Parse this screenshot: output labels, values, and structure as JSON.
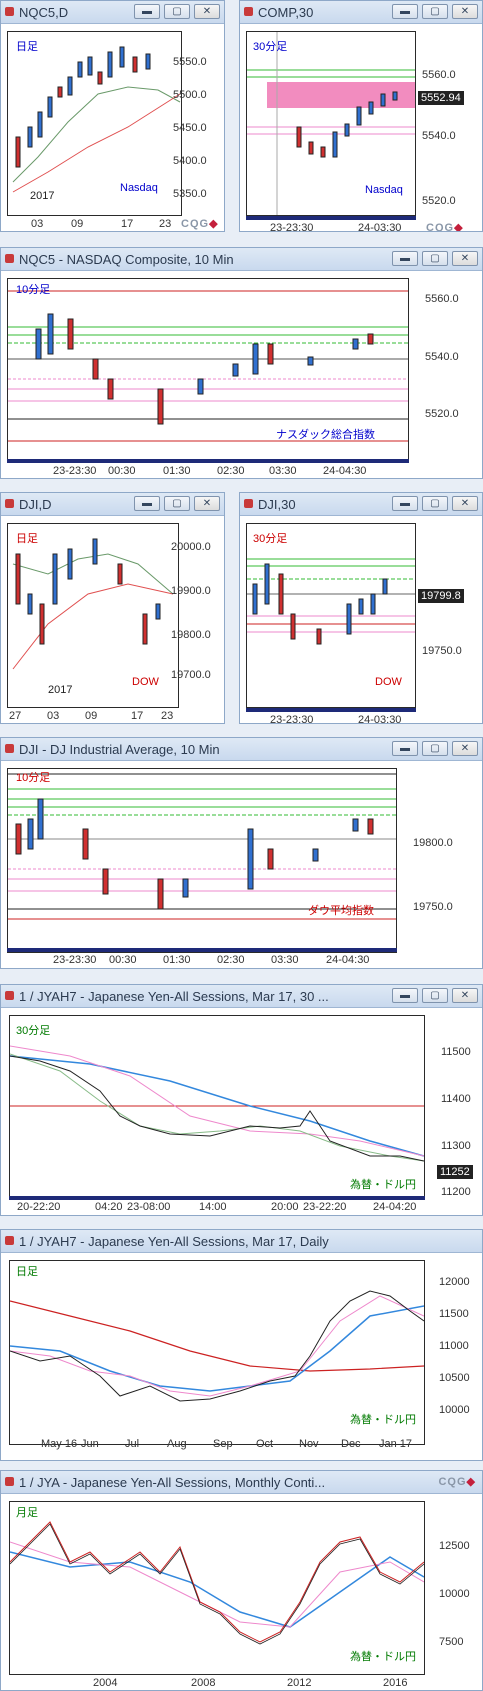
{
  "brand": "CQG",
  "windows": [
    {
      "key": "w1",
      "title": "NQC5,D",
      "label": "日足",
      "label_color": "#0000cc",
      "footer": "Nasdaq",
      "footer_color": "#0000cc",
      "year": "2017",
      "y_ticks": [
        "5550.0",
        "5500.0",
        "5450.0",
        "5400.0",
        "5350.0"
      ],
      "x_ticks": [
        "03",
        "09",
        "17",
        "23"
      ]
    },
    {
      "key": "w2",
      "title": "COMP,30",
      "label": "30分足",
      "label_color": "#0000cc",
      "footer": "Nasdaq",
      "footer_color": "#0000cc",
      "y_ticks": [
        "5560.0",
        "5540.0",
        "5520.0"
      ],
      "price": "5552.94",
      "x_ticks": [
        "23-23:30",
        "24-03:30"
      ]
    },
    {
      "key": "w3",
      "title": "NQC5 - NASDAQ Composite, 10 Min",
      "label": "10分足",
      "label_color": "#0000cc",
      "footer": "ナスダック総合指数",
      "footer_color": "#0000cc",
      "y_ticks": [
        "5560.0",
        "5540.0",
        "5520.0"
      ],
      "x_ticks": [
        "23-23:30",
        "00:30",
        "01:30",
        "02:30",
        "03:30",
        "24-04:30"
      ]
    },
    {
      "key": "w4",
      "title": "DJI,D",
      "label": "日足",
      "label_color": "#cc0000",
      "footer": "DOW",
      "footer_color": "#cc0000",
      "year": "2017",
      "y_ticks": [
        "20000.0",
        "19900.0",
        "19800.0",
        "19700.0"
      ],
      "x_ticks": [
        "27",
        "03",
        "09",
        "17",
        "23"
      ]
    },
    {
      "key": "w5",
      "title": "DJI,30",
      "label": "30分足",
      "label_color": "#cc0000",
      "footer": "DOW",
      "footer_color": "#cc0000",
      "y_ticks": [
        "19750.0"
      ],
      "price": "19799.8",
      "x_ticks": [
        "23-23:30",
        "24-03:30"
      ]
    },
    {
      "key": "w6",
      "title": "DJI - DJ Industrial Average, 10 Min",
      "label": "10分足",
      "label_color": "#cc0000",
      "footer": "ダウ平均指数",
      "footer_color": "#cc0000",
      "y_ticks": [
        "19800.0",
        "19750.0"
      ],
      "x_ticks": [
        "23-23:30",
        "00:30",
        "01:30",
        "02:30",
        "03:30",
        "24-04:30"
      ]
    },
    {
      "key": "w7",
      "title": "1 / JYAH7 - Japanese Yen-All Sessions, Mar 17, 30 ...",
      "label": "30分足",
      "label_color": "#007a00",
      "footer": "為替・ドル円",
      "footer_color": "#007a00",
      "y_ticks": [
        "11500",
        "11400",
        "11300",
        "11200"
      ],
      "price": "11252",
      "x_ticks": [
        "20-22:20",
        "04:20",
        "23-08:00",
        "14:00",
        "20:00",
        "23-22:20",
        "24-04:20"
      ]
    },
    {
      "key": "w8",
      "title": "1 / JYAH7 - Japanese Yen-All Sessions, Mar 17, Daily",
      "label": "日足",
      "label_color": "#007a00",
      "footer": "為替・ドル円",
      "footer_color": "#007a00",
      "y_ticks": [
        "12000",
        "11500",
        "11000",
        "10500",
        "10000"
      ],
      "x_ticks": [
        "May 16",
        "Jun",
        "Jul",
        "Aug",
        "Sep",
        "Oct",
        "Nov",
        "Dec",
        "Jan 17"
      ]
    },
    {
      "key": "w9",
      "title": "1 / JYA - Japanese Yen-All Sessions, Monthly Conti...",
      "label": "月足",
      "label_color": "#007a00",
      "footer": "為替・ドル円",
      "footer_color": "#007a00",
      "y_ticks": [
        "12500",
        "10000",
        "7500"
      ],
      "x_ticks": [
        "2004",
        "2008",
        "2012",
        "2016"
      ]
    }
  ]
}
